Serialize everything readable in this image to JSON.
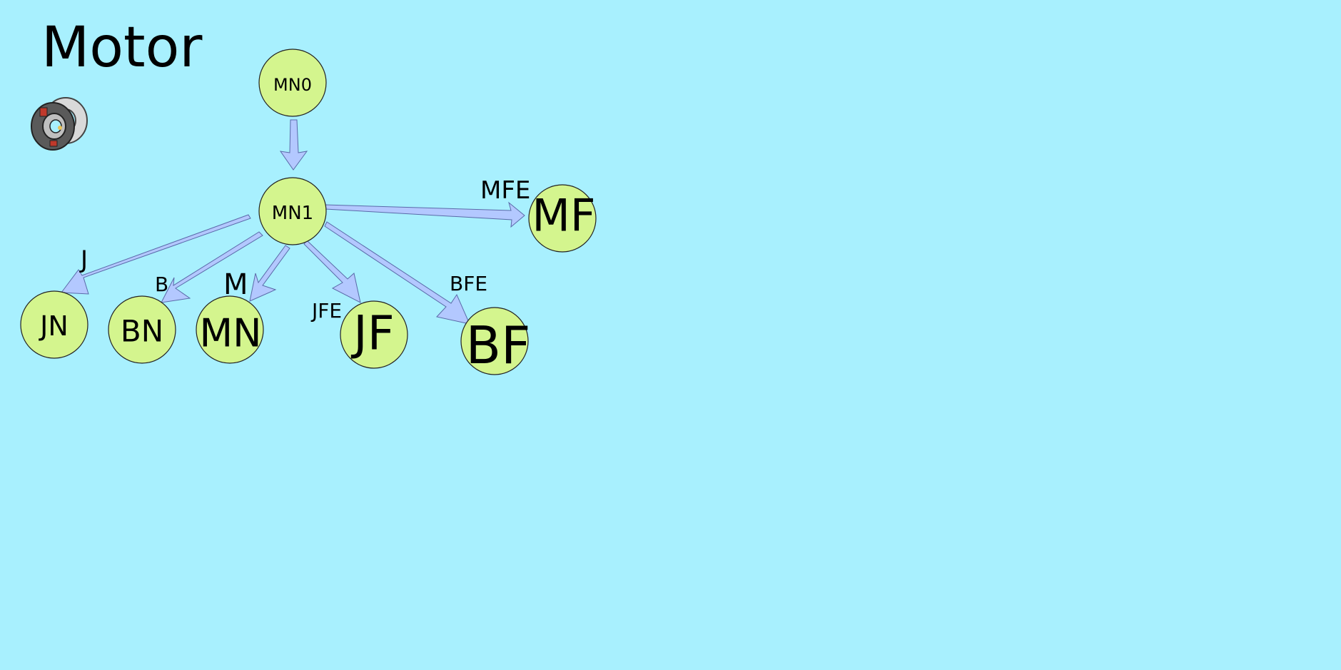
{
  "title": "Motor",
  "icon": "motor-bearing-icon",
  "colors": {
    "background": "#a8f0fe",
    "node_fill": "#d4f58e",
    "arrow_fill": "#b3c8ff"
  },
  "nodes": {
    "MN0": "MN0",
    "MN1": "MN1",
    "MF": "MF",
    "JN": "JN",
    "BN": "BN",
    "MN": "MN",
    "JF": "JF",
    "BF": "BF"
  },
  "edges": {
    "mn0_mn1": "",
    "mn1_mf": "MFE",
    "mn1_jn": "J",
    "mn1_bn": "B",
    "mn1_mn": "M",
    "mn1_jf": "JFE",
    "mn1_bf": "BFE"
  }
}
